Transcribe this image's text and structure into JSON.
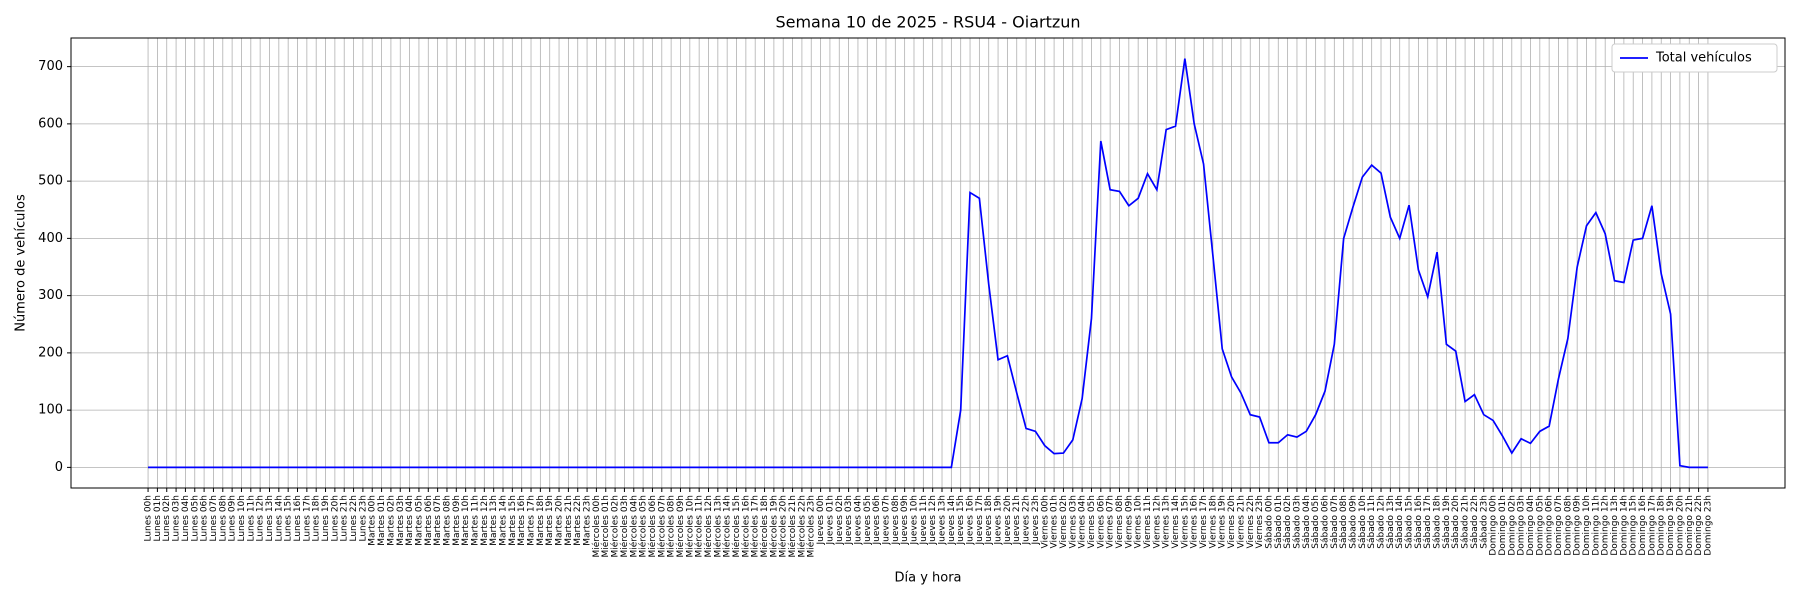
{
  "chart_data": {
    "type": "line",
    "title": "Semana 10 de 2025 - RSU4 - Oiartzun",
    "xlabel": "Día y hora",
    "ylabel": "Número de vehículos",
    "categories": [
      "Lunes 00h",
      "Lunes 01h",
      "Lunes 02h",
      "Lunes 03h",
      "Lunes 04h",
      "Lunes 05h",
      "Lunes 06h",
      "Lunes 07h",
      "Lunes 08h",
      "Lunes 09h",
      "Lunes 10h",
      "Lunes 11h",
      "Lunes 12h",
      "Lunes 13h",
      "Lunes 14h",
      "Lunes 15h",
      "Lunes 16h",
      "Lunes 17h",
      "Lunes 18h",
      "Lunes 19h",
      "Lunes 20h",
      "Lunes 21h",
      "Lunes 22h",
      "Lunes 23h",
      "Martes 00h",
      "Martes 01h",
      "Martes 02h",
      "Martes 03h",
      "Martes 04h",
      "Martes 05h",
      "Martes 06h",
      "Martes 07h",
      "Martes 08h",
      "Martes 09h",
      "Martes 10h",
      "Martes 11h",
      "Martes 12h",
      "Martes 13h",
      "Martes 14h",
      "Martes 15h",
      "Martes 16h",
      "Martes 17h",
      "Martes 18h",
      "Martes 19h",
      "Martes 20h",
      "Martes 21h",
      "Martes 22h",
      "Martes 23h",
      "Miércoles 00h",
      "Miércoles 01h",
      "Miércoles 02h",
      "Miércoles 03h",
      "Miércoles 04h",
      "Miércoles 05h",
      "Miércoles 06h",
      "Miércoles 07h",
      "Miércoles 08h",
      "Miércoles 09h",
      "Miércoles 10h",
      "Miércoles 11h",
      "Miércoles 12h",
      "Miércoles 13h",
      "Miércoles 14h",
      "Miércoles 15h",
      "Miércoles 16h",
      "Miércoles 17h",
      "Miércoles 18h",
      "Miércoles 19h",
      "Miércoles 20h",
      "Miércoles 21h",
      "Miércoles 22h",
      "Miércoles 23h",
      "Jueves 00h",
      "Jueves 01h",
      "Jueves 02h",
      "Jueves 03h",
      "Jueves 04h",
      "Jueves 05h",
      "Jueves 06h",
      "Jueves 07h",
      "Jueves 08h",
      "Jueves 09h",
      "Jueves 10h",
      "Jueves 11h",
      "Jueves 12h",
      "Jueves 13h",
      "Jueves 14h",
      "Jueves 15h",
      "Jueves 16h",
      "Jueves 17h",
      "Jueves 18h",
      "Jueves 19h",
      "Jueves 20h",
      "Jueves 21h",
      "Jueves 22h",
      "Jueves 23h",
      "Viernes 00h",
      "Viernes 01h",
      "Viernes 02h",
      "Viernes 03h",
      "Viernes 04h",
      "Viernes 05h",
      "Viernes 06h",
      "Viernes 07h",
      "Viernes 08h",
      "Viernes 09h",
      "Viernes 10h",
      "Viernes 11h",
      "Viernes 12h",
      "Viernes 13h",
      "Viernes 14h",
      "Viernes 15h",
      "Viernes 16h",
      "Viernes 17h",
      "Viernes 18h",
      "Viernes 19h",
      "Viernes 20h",
      "Viernes 21h",
      "Viernes 22h",
      "Viernes 23h",
      "Sábado 00h",
      "Sábado 01h",
      "Sábado 02h",
      "Sábado 03h",
      "Sábado 04h",
      "Sábado 05h",
      "Sábado 06h",
      "Sábado 07h",
      "Sábado 08h",
      "Sábado 09h",
      "Sábado 10h",
      "Sábado 11h",
      "Sábado 12h",
      "Sábado 13h",
      "Sábado 14h",
      "Sábado 15h",
      "Sábado 16h",
      "Sábado 17h",
      "Sábado 18h",
      "Sábado 19h",
      "Sábado 20h",
      "Sábado 21h",
      "Sábado 22h",
      "Sábado 23h",
      "Domingo 00h",
      "Domingo 01h",
      "Domingo 02h",
      "Domingo 03h",
      "Domingo 04h",
      "Domingo 05h",
      "Domingo 06h",
      "Domingo 07h",
      "Domingo 08h",
      "Domingo 09h",
      "Domingo 10h",
      "Domingo 11h",
      "Domingo 12h",
      "Domingo 13h",
      "Domingo 14h",
      "Domingo 15h",
      "Domingo 16h",
      "Domingo 17h",
      "Domingo 18h",
      "Domingo 19h",
      "Domingo 20h",
      "Domingo 21h",
      "Domingo 22h",
      "Domingo 23h"
    ],
    "series": [
      {
        "name": "Total vehículos",
        "color": "#0000ff",
        "values": [
          0,
          0,
          0,
          0,
          0,
          0,
          0,
          0,
          0,
          0,
          0,
          0,
          0,
          0,
          0,
          0,
          0,
          0,
          0,
          0,
          0,
          0,
          0,
          0,
          0,
          0,
          0,
          0,
          0,
          0,
          0,
          0,
          0,
          0,
          0,
          0,
          0,
          0,
          0,
          0,
          0,
          0,
          0,
          0,
          0,
          0,
          0,
          0,
          0,
          0,
          0,
          0,
          0,
          0,
          0,
          0,
          0,
          0,
          0,
          0,
          0,
          0,
          0,
          0,
          0,
          0,
          0,
          0,
          0,
          0,
          0,
          0,
          0,
          0,
          0,
          0,
          0,
          0,
          0,
          0,
          0,
          0,
          0,
          0,
          0,
          0,
          0,
          100,
          480,
          470,
          320,
          188,
          195,
          130,
          68,
          63,
          38,
          24,
          25,
          48,
          120,
          260,
          570,
          485,
          482,
          457,
          470,
          513,
          485,
          590,
          596,
          714,
          600,
          530,
          370,
          207,
          158,
          130,
          92,
          88,
          43,
          43,
          57,
          53,
          63,
          92,
          133,
          215,
          400,
          455,
          507,
          528,
          514,
          437,
          400,
          458,
          345,
          298,
          376,
          215,
          203,
          115,
          127,
          92,
          82,
          55,
          25,
          50,
          42,
          63,
          72,
          155,
          225,
          350,
          422,
          445,
          408,
          326,
          323,
          397,
          400,
          457,
          338,
          268,
          3,
          0,
          0,
          0
        ]
      }
    ],
    "ylim": [
      -36,
      750
    ],
    "yticks": [
      0,
      100,
      200,
      300,
      400,
      500,
      600,
      700
    ],
    "grid": true,
    "legend": "upper right"
  }
}
